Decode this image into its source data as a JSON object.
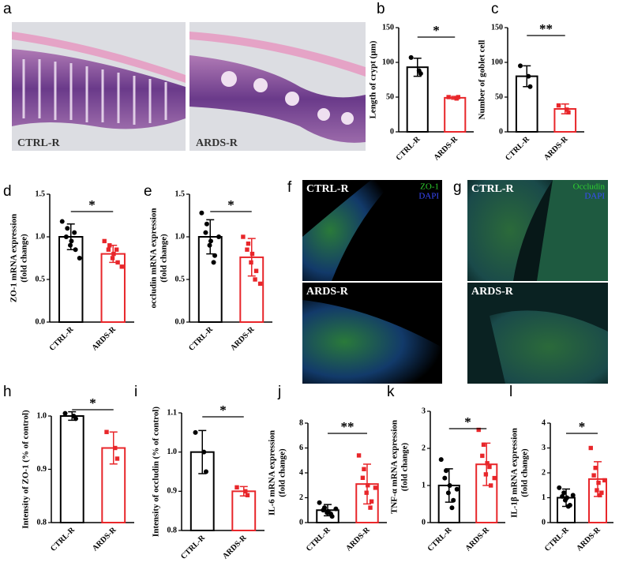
{
  "chart_data": [
    {
      "type": "bar",
      "panel": "b",
      "ylabel": [
        "Length of crypt (μm)"
      ],
      "categories": [
        "CTRL-R",
        "ARDS-R"
      ],
      "colors": [
        "#000000",
        "#e8262a"
      ],
      "values": [
        93,
        49
      ],
      "errors": [
        13,
        2
      ],
      "points": [
        [
          107,
          88,
          84
        ],
        [
          50,
          48,
          50
        ]
      ],
      "ylim": [
        0,
        150
      ],
      "yticks": [
        0,
        50,
        100,
        150
      ],
      "annotation": "*"
    },
    {
      "type": "bar",
      "panel": "c",
      "ylabel": [
        "Number of goblet cell"
      ],
      "categories": [
        "CTRL-R",
        "ARDS-R"
      ],
      "colors": [
        "#000000",
        "#e8262a"
      ],
      "values": [
        80,
        33
      ],
      "errors": [
        15,
        7
      ],
      "points": [
        [
          95,
          80,
          65
        ],
        [
          38,
          32,
          28
        ]
      ],
      "ylim": [
        0,
        150
      ],
      "yticks": [
        0,
        50,
        100,
        150
      ],
      "annotation": "**"
    },
    {
      "type": "bar",
      "panel": "d",
      "ylabel": [
        "ZO-1 mRNA expression",
        "(fold change)"
      ],
      "categories": [
        "CTRL-R",
        "ARDS-R"
      ],
      "colors": [
        "#000000",
        "#e8262a"
      ],
      "values": [
        1.0,
        0.8
      ],
      "errors": [
        0.15,
        0.1
      ],
      "points": [
        [
          1.18,
          1.1,
          1.0,
          0.95,
          0.9,
          0.85,
          1.05,
          0.75
        ],
        [
          0.95,
          0.9,
          0.85,
          0.8,
          0.75,
          0.7,
          0.85,
          0.65
        ]
      ],
      "ylim": [
        0,
        1.5
      ],
      "yticks": [
        {
          "value": 0,
          "label": "0.0"
        },
        0.5,
        {
          "value": 1,
          "label": "1.0"
        },
        1.5
      ],
      "annotation": "*"
    },
    {
      "type": "bar",
      "panel": "e",
      "ylabel": [
        "occludin mRNA expression",
        "(fold change)"
      ],
      "categories": [
        "CTRL-R",
        "ARDS-R"
      ],
      "colors": [
        "#000000",
        "#e8262a"
      ],
      "values": [
        1.0,
        0.76
      ],
      "errors": [
        0.2,
        0.22
      ],
      "points": [
        [
          1.28,
          1.15,
          1.05,
          0.95,
          0.9,
          0.78,
          0.7,
          1.0
        ],
        [
          1.0,
          0.92,
          0.85,
          0.8,
          0.7,
          0.6,
          0.5,
          0.45
        ]
      ],
      "ylim": [
        0,
        1.5
      ],
      "yticks": [
        {
          "value": 0,
          "label": "0.0"
        },
        0.5,
        {
          "value": 1,
          "label": "1.0"
        },
        1.5
      ],
      "annotation": "*"
    },
    {
      "type": "bar",
      "panel": "h",
      "ylabel": [
        "Intensity of ZO-1 (% of control)"
      ],
      "categories": [
        "CTRL-R",
        "ARDS-R"
      ],
      "colors": [
        "#000000",
        "#e8262a"
      ],
      "values": [
        1.0,
        0.94
      ],
      "errors": [
        0.008,
        0.03
      ],
      "points": [
        [
          1.005,
          1.0,
          0.995
        ],
        [
          0.97,
          0.94,
          0.92
        ]
      ],
      "ylim": [
        0.8,
        1.0
      ],
      "yticks": [
        0.8,
        0.9,
        {
          "value": 1,
          "label": "1.0"
        }
      ],
      "annotation": "*"
    },
    {
      "type": "bar",
      "panel": "i",
      "ylabel": [
        "Intensity of occludin (% of control)"
      ],
      "categories": [
        "CTRL-R",
        "ARDS-R"
      ],
      "colors": [
        "#000000",
        "#e8262a"
      ],
      "values": [
        1.0,
        0.9
      ],
      "errors": [
        0.055,
        0.012
      ],
      "points": [
        [
          1.05,
          1.0,
          0.95
        ],
        [
          0.91,
          0.9,
          0.89
        ]
      ],
      "ylim": [
        0.8,
        1.1
      ],
      "yticks": [
        0.8,
        0.9,
        {
          "value": 1,
          "label": "1.0"
        },
        1.1
      ],
      "annotation": "*"
    },
    {
      "type": "bar",
      "panel": "j",
      "ylabel": [
        "IL-6 mRNA expression",
        "(fold change)"
      ],
      "categories": [
        "CTRL-R",
        "ARDS-R"
      ],
      "colors": [
        "#000000",
        "#e8262a"
      ],
      "values": [
        1.0,
        3.1
      ],
      "errors": [
        0.45,
        1.6
      ],
      "points": [
        [
          1.6,
          1.2,
          1.0,
          0.9,
          0.8,
          0.5,
          0.7,
          1.1
        ],
        [
          5.4,
          4.3,
          3.6,
          3.0,
          2.4,
          1.7,
          1.2,
          2.8
        ]
      ],
      "ylim": [
        0,
        8
      ],
      "yticks": [
        0,
        2,
        4,
        6,
        8
      ],
      "annotation": "**"
    },
    {
      "type": "bar",
      "panel": "k",
      "ylabel": [
        "TNF-α mRNA expression",
        "(fold change)"
      ],
      "categories": [
        "CTRL-R",
        "ARDS-R"
      ],
      "colors": [
        "#000000",
        "#e8262a"
      ],
      "values": [
        1.0,
        1.57
      ],
      "errors": [
        0.45,
        0.57
      ],
      "points": [
        [
          1.7,
          1.4,
          1.2,
          1.0,
          0.8,
          0.6,
          0.4,
          0.9
        ],
        [
          2.5,
          2.1,
          1.8,
          1.6,
          1.3,
          1.0,
          1.5,
          1.2
        ]
      ],
      "ylim": [
        0,
        3
      ],
      "yticks": [
        0,
        1,
        2,
        3
      ],
      "annotation": "*"
    },
    {
      "type": "bar",
      "panel": "l",
      "ylabel": [
        "IL-1β mRNA expression",
        "(fold change)"
      ],
      "categories": [
        "CTRL-R",
        "ARDS-R"
      ],
      "colors": [
        "#000000",
        "#e8262a"
      ],
      "values": [
        1.0,
        1.75
      ],
      "errors": [
        0.35,
        0.7
      ],
      "points": [
        [
          1.4,
          1.2,
          1.05,
          1.0,
          0.9,
          0.7,
          0.65,
          1.1
        ],
        [
          3.0,
          2.2,
          1.9,
          1.6,
          1.3,
          1.2,
          1.1,
          1.7
        ]
      ],
      "ylim": [
        0,
        4
      ],
      "yticks": [
        0,
        1,
        2,
        3,
        4
      ],
      "annotation": "*"
    }
  ],
  "images": {
    "a": {
      "panel": "a",
      "labels": [
        "CTRL-R",
        "ARDS-R"
      ]
    },
    "f": {
      "panel": "f",
      "labels": [
        "CTRL-R",
        "ARDS-R"
      ],
      "stains": [
        "ZO-1",
        "DAPI"
      ]
    },
    "g": {
      "panel": "g",
      "labels": [
        "CTRL-R",
        "ARDS-R"
      ],
      "stains": [
        "Occludin",
        "DAPI"
      ]
    }
  }
}
